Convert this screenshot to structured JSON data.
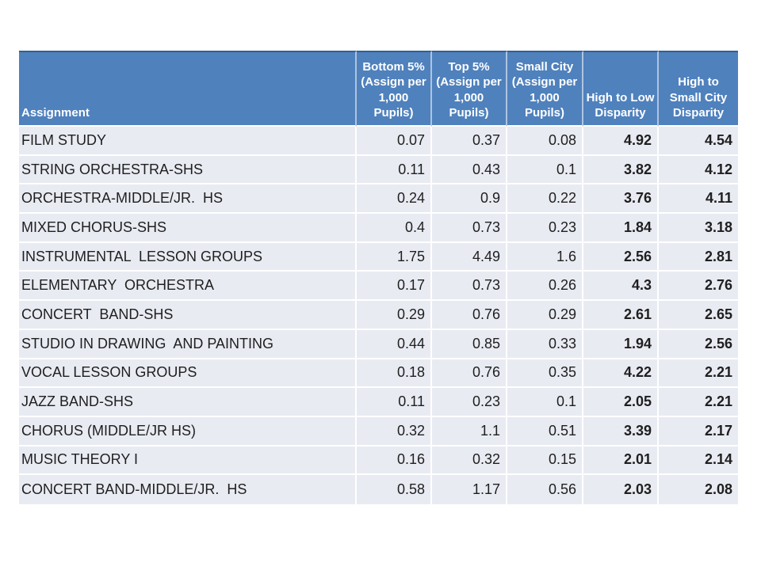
{
  "slide": {
    "background_color": "#FFFFFF"
  },
  "chart_data": {
    "type": "table",
    "columns": [
      {
        "id": "assignment",
        "label": "Assignment",
        "display": "Assignment"
      },
      {
        "id": "bottom-5-percent",
        "label": "Bottom 5% (Assign per 1,000 Pupils)",
        "display": "Bottom 5%\n(Assign per\n1,000\nPupils)"
      },
      {
        "id": "top-5-percent",
        "label": "Top 5% (Assign per 1,000 Pupils)",
        "display": "Top 5%\n(Assign per\n1,000\nPupils)"
      },
      {
        "id": "small-city",
        "label": "Small City (Assign per 1,000 Pupils)",
        "display": "Small City\n(Assign per\n1,000\nPupils)"
      },
      {
        "id": "high-to-low-disparity",
        "label": "High to Low Disparity",
        "display": "High to Low\nDisparity"
      },
      {
        "id": "high-to-small-city-disparity",
        "label": "High to Small City Disparity",
        "display": "High to\nSmall City\nDisparity"
      }
    ],
    "bold_columns": [
      4,
      5
    ],
    "rows": [
      [
        "FILM STUDY",
        "0.07",
        "0.37",
        "0.08",
        "4.92",
        "4.54"
      ],
      [
        "STRING ORCHESTRA-SHS",
        "0.11",
        "0.43",
        "0.1",
        "3.82",
        "4.12"
      ],
      [
        "ORCHESTRA-MIDDLE/JR.  HS",
        "0.24",
        "0.9",
        "0.22",
        "3.76",
        "4.11"
      ],
      [
        "MIXED CHORUS-SHS",
        "0.4",
        "0.73",
        "0.23",
        "1.84",
        "3.18"
      ],
      [
        "INSTRUMENTAL  LESSON GROUPS",
        "1.75",
        "4.49",
        "1.6",
        "2.56",
        "2.81"
      ],
      [
        "ELEMENTARY  ORCHESTRA",
        "0.17",
        "0.73",
        "0.26",
        "4.3",
        "2.76"
      ],
      [
        "CONCERT  BAND-SHS",
        "0.29",
        "0.76",
        "0.29",
        "2.61",
        "2.65"
      ],
      [
        "STUDIO IN DRAWING  AND PAINTING",
        "0.44",
        "0.85",
        "0.33",
        "1.94",
        "2.56"
      ],
      [
        "VOCAL LESSON GROUPS",
        "0.18",
        "0.76",
        "0.35",
        "4.22",
        "2.21"
      ],
      [
        "JAZZ BAND-SHS",
        "0.11",
        "0.23",
        "0.1",
        "2.05",
        "2.21"
      ],
      [
        "CHORUS (MIDDLE/JR HS)",
        "0.32",
        "1.1",
        "0.51",
        "3.39",
        "2.17"
      ],
      [
        "MUSIC THEORY I",
        "0.16",
        "0.32",
        "0.15",
        "2.01",
        "2.14"
      ],
      [
        "CONCERT BAND-MIDDLE/JR.  HS",
        "0.58",
        "1.17",
        "0.56",
        "2.03",
        "2.08"
      ]
    ]
  },
  "colors": {
    "header_background": "#4F81BD",
    "header_text": "#FFFFFF",
    "header_top_border": "#365F91",
    "header_divider": "#AFC4DE",
    "row_background": "#E9EBF3",
    "row_divider": "#FFFFFF",
    "body_text": "#1F1F1F"
  }
}
